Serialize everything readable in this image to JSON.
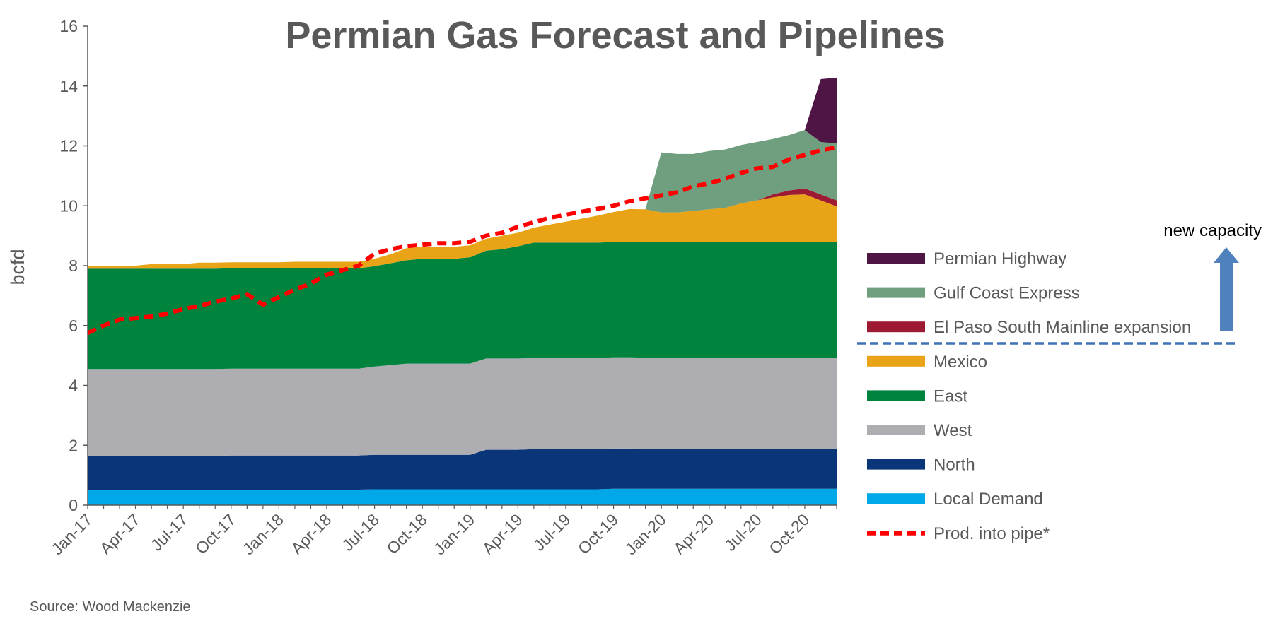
{
  "chart_data": {
    "type": "area",
    "title": "Permian Gas Forecast and Pipelines",
    "ylabel": "bcfd",
    "xlabel": "",
    "ylim": [
      0,
      16
    ],
    "yticks": [
      0,
      2,
      4,
      6,
      8,
      10,
      12,
      14,
      16
    ],
    "x_tick_labels": [
      "Jan-17",
      "Apr-17",
      "Jul-17",
      "Oct-17",
      "Jan-18",
      "Apr-18",
      "Jul-18",
      "Oct-18",
      "Jan-19",
      "Apr-19",
      "Jul-19",
      "Oct-19",
      "Jan-20",
      "Apr-20",
      "Jul-20",
      "Oct-20"
    ],
    "months": 48,
    "stacked_series": [
      {
        "name": "Local Demand",
        "color": "#00a8e8",
        "values": [
          0.5,
          0.5,
          0.5,
          0.5,
          0.5,
          0.5,
          0.5,
          0.5,
          0.5,
          0.52,
          0.52,
          0.52,
          0.52,
          0.52,
          0.52,
          0.52,
          0.52,
          0.52,
          0.53,
          0.53,
          0.53,
          0.53,
          0.53,
          0.53,
          0.53,
          0.53,
          0.53,
          0.53,
          0.53,
          0.53,
          0.53,
          0.53,
          0.53,
          0.55,
          0.55,
          0.55,
          0.55,
          0.55,
          0.55,
          0.55,
          0.55,
          0.55,
          0.55,
          0.55,
          0.55,
          0.55,
          0.55,
          0.55
        ]
      },
      {
        "name": "North",
        "color": "#0a3578",
        "values": [
          1.15,
          1.15,
          1.15,
          1.15,
          1.15,
          1.15,
          1.15,
          1.15,
          1.15,
          1.14,
          1.14,
          1.14,
          1.14,
          1.14,
          1.14,
          1.14,
          1.14,
          1.14,
          1.15,
          1.15,
          1.15,
          1.15,
          1.15,
          1.15,
          1.15,
          1.32,
          1.32,
          1.32,
          1.34,
          1.34,
          1.34,
          1.34,
          1.34,
          1.34,
          1.34,
          1.33,
          1.33,
          1.33,
          1.33,
          1.33,
          1.33,
          1.33,
          1.33,
          1.33,
          1.33,
          1.33,
          1.33,
          1.33
        ]
      },
      {
        "name": "West",
        "color": "#aeaeb2",
        "values": [
          2.9,
          2.9,
          2.9,
          2.9,
          2.9,
          2.9,
          2.9,
          2.9,
          2.9,
          2.9,
          2.9,
          2.9,
          2.9,
          2.9,
          2.9,
          2.9,
          2.9,
          2.9,
          2.95,
          3.0,
          3.05,
          3.05,
          3.05,
          3.05,
          3.05,
          3.05,
          3.05,
          3.05,
          3.05,
          3.05,
          3.05,
          3.05,
          3.05,
          3.05,
          3.05,
          3.05,
          3.05,
          3.05,
          3.05,
          3.05,
          3.05,
          3.05,
          3.05,
          3.05,
          3.05,
          3.05,
          3.05,
          3.05
        ]
      },
      {
        "name": "East",
        "color": "#00843d",
        "values": [
          3.35,
          3.35,
          3.35,
          3.35,
          3.35,
          3.35,
          3.35,
          3.35,
          3.35,
          3.35,
          3.35,
          3.35,
          3.35,
          3.35,
          3.35,
          3.35,
          3.35,
          3.35,
          3.35,
          3.4,
          3.45,
          3.5,
          3.5,
          3.5,
          3.55,
          3.6,
          3.65,
          3.75,
          3.85,
          3.85,
          3.85,
          3.85,
          3.85,
          3.85,
          3.85,
          3.85,
          3.85,
          3.85,
          3.85,
          3.85,
          3.85,
          3.85,
          3.85,
          3.85,
          3.85,
          3.85,
          3.85,
          3.85
        ]
      },
      {
        "name": "Mexico",
        "color": "#e8a317",
        "values": [
          0.1,
          0.1,
          0.1,
          0.1,
          0.15,
          0.15,
          0.15,
          0.2,
          0.2,
          0.2,
          0.2,
          0.2,
          0.2,
          0.22,
          0.22,
          0.22,
          0.22,
          0.22,
          0.25,
          0.3,
          0.4,
          0.4,
          0.4,
          0.4,
          0.4,
          0.4,
          0.45,
          0.45,
          0.5,
          0.6,
          0.7,
          0.8,
          0.9,
          1.0,
          1.1,
          1.1,
          1.0,
          1.0,
          1.05,
          1.1,
          1.15,
          1.3,
          1.4,
          1.5,
          1.58,
          1.6,
          1.4,
          1.2
        ]
      },
      {
        "name": "El Paso South Mainline expansion",
        "color": "#9e1a32",
        "values": [
          0,
          0,
          0,
          0,
          0,
          0,
          0,
          0,
          0,
          0,
          0,
          0,
          0,
          0,
          0,
          0,
          0,
          0,
          0,
          0,
          0,
          0,
          0,
          0,
          0,
          0,
          0,
          0,
          0,
          0,
          0,
          0,
          0,
          0,
          0,
          0,
          0,
          0,
          0,
          0,
          0,
          0,
          0,
          0.1,
          0.15,
          0.2,
          0.2,
          0.2
        ]
      },
      {
        "name": "Gulf Coast Express",
        "color": "#6f9f7e",
        "values": [
          0,
          0,
          0,
          0,
          0,
          0,
          0,
          0,
          0,
          0,
          0,
          0,
          0,
          0,
          0,
          0,
          0,
          0,
          0,
          0,
          0,
          0,
          0,
          0,
          0,
          0,
          0,
          0,
          0,
          0,
          0,
          0,
          0,
          0,
          0,
          0,
          2.0,
          1.95,
          1.9,
          1.95,
          1.95,
          1.95,
          1.95,
          1.85,
          1.85,
          1.95,
          1.75,
          1.9
        ]
      },
      {
        "name": "Permian Highway",
        "color": "#4f1645",
        "values": [
          0,
          0,
          0,
          0,
          0,
          0,
          0,
          0,
          0,
          0,
          0,
          0,
          0,
          0,
          0,
          0,
          0,
          0,
          0,
          0,
          0,
          0,
          0,
          0,
          0,
          0,
          0,
          0,
          0,
          0,
          0,
          0,
          0,
          0,
          0,
          0,
          0,
          0,
          0,
          0,
          0,
          0,
          0,
          0,
          0,
          0,
          2.1,
          2.2
        ]
      }
    ],
    "line_series": {
      "name": "Prod. into pipe*",
      "color": "#ff0000",
      "values": [
        5.75,
        6.0,
        6.2,
        6.25,
        6.3,
        6.4,
        6.55,
        6.65,
        6.8,
        6.9,
        7.05,
        6.7,
        6.95,
        7.2,
        7.4,
        7.7,
        7.85,
        8.0,
        8.4,
        8.55,
        8.65,
        8.7,
        8.75,
        8.75,
        8.8,
        9.0,
        9.1,
        9.3,
        9.45,
        9.6,
        9.7,
        9.8,
        9.9,
        10.0,
        10.15,
        10.25,
        10.35,
        10.45,
        10.65,
        10.75,
        10.9,
        11.1,
        11.25,
        11.3,
        11.55,
        11.7,
        11.85,
        11.95
      ]
    },
    "legend": [
      {
        "label": "Permian Highway",
        "color": "#4f1645",
        "kind": "box"
      },
      {
        "label": "Gulf Coast Express",
        "color": "#6f9f7e",
        "kind": "box"
      },
      {
        "label": "El Paso South Mainline expansion",
        "color": "#9e1a32",
        "kind": "box"
      },
      {
        "label": "Mexico",
        "color": "#e8a317",
        "kind": "box"
      },
      {
        "label": "East",
        "color": "#00843d",
        "kind": "box"
      },
      {
        "label": "West",
        "color": "#aeaeb2",
        "kind": "box"
      },
      {
        "label": "North",
        "color": "#0a3578",
        "kind": "box"
      },
      {
        "label": "Local Demand",
        "color": "#00a8e8",
        "kind": "box"
      },
      {
        "label": "Prod. into pipe*",
        "color": "#ff0000",
        "kind": "dash"
      }
    ],
    "annotations": {
      "new_capacity": "new capacity",
      "source": "Source: Wood Mackenzie"
    },
    "colors": {
      "axis": "#595959",
      "arrow": "#4f81bd",
      "capacity_line": "#3f72b8"
    }
  }
}
